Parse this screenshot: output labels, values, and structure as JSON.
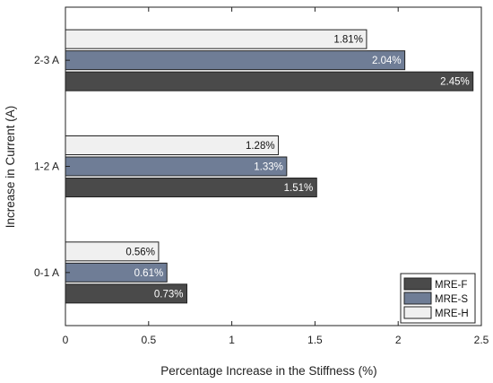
{
  "chart_data": {
    "type": "bar",
    "orientation": "horizontal",
    "title": "",
    "xlabel": "Percentage Increase in the Stiffness (%)",
    "ylabel": "Increase in Current (A)",
    "xlim": [
      0,
      2.5
    ],
    "xticks": [
      "0",
      "0.5",
      "1",
      "1.5",
      "2",
      "2.5"
    ],
    "categories": [
      "0-1 A",
      "1-2 A",
      "2-3 A"
    ],
    "series": [
      {
        "name": "MRE-F",
        "color": "#4a4a4a",
        "label_color": "#ffffff",
        "values": [
          0.73,
          1.51,
          2.45
        ],
        "labels": [
          "0.73%",
          "1.51%",
          "2.45%"
        ]
      },
      {
        "name": "MRE-S",
        "color": "#6f7d96",
        "label_color": "#ffffff",
        "values": [
          0.61,
          1.33,
          2.04
        ],
        "labels": [
          "0.61%",
          "1.33%",
          "2.04%"
        ]
      },
      {
        "name": "MRE-H",
        "color": "#f0f0f0",
        "label_color": "#111111",
        "values": [
          0.56,
          1.28,
          1.81
        ],
        "labels": [
          "0.56%",
          "1.28%",
          "1.81%"
        ]
      }
    ],
    "legend": {
      "position": "bottom-right",
      "entries": [
        "MRE-F",
        "MRE-S",
        "MRE-H"
      ]
    },
    "grid": false
  }
}
